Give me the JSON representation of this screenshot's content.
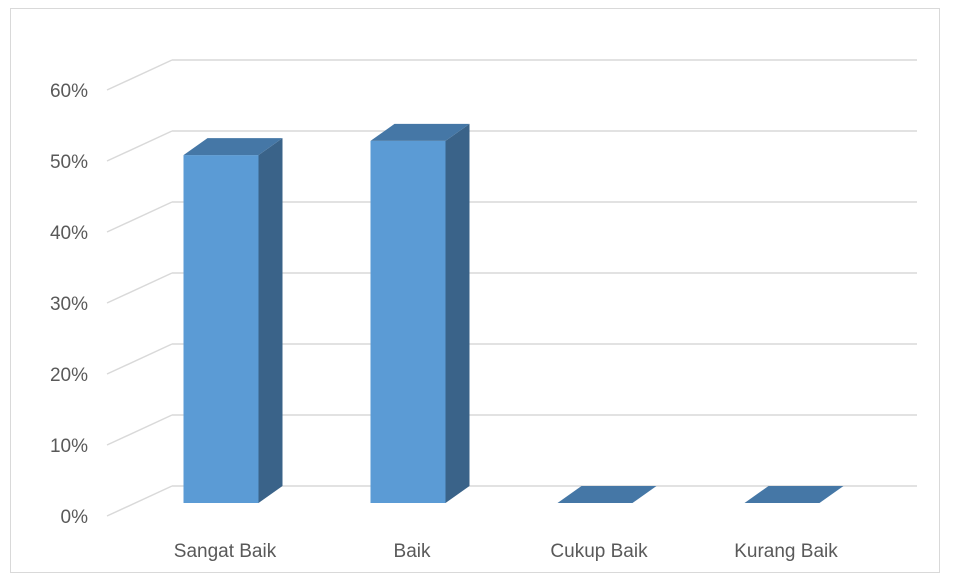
{
  "chart_data": {
    "type": "bar",
    "categories": [
      "Sangat Baik",
      "Baik",
      "Cukup Baik",
      "Kurang Baik"
    ],
    "values": [
      0.49,
      0.51,
      0.0,
      0.0
    ],
    "ylim": [
      0,
      0.6
    ],
    "yticks": [
      "0%",
      "10%",
      "20%",
      "30%",
      "40%",
      "50%",
      "60%"
    ],
    "grid": true,
    "legend": "none",
    "style": "3d-column",
    "colors": {
      "bar_front": "#5b9bd5",
      "bar_side": "#3a6389",
      "bar_top": "#4577a6",
      "grid": "#d9d9d9",
      "text": "#595959"
    }
  }
}
